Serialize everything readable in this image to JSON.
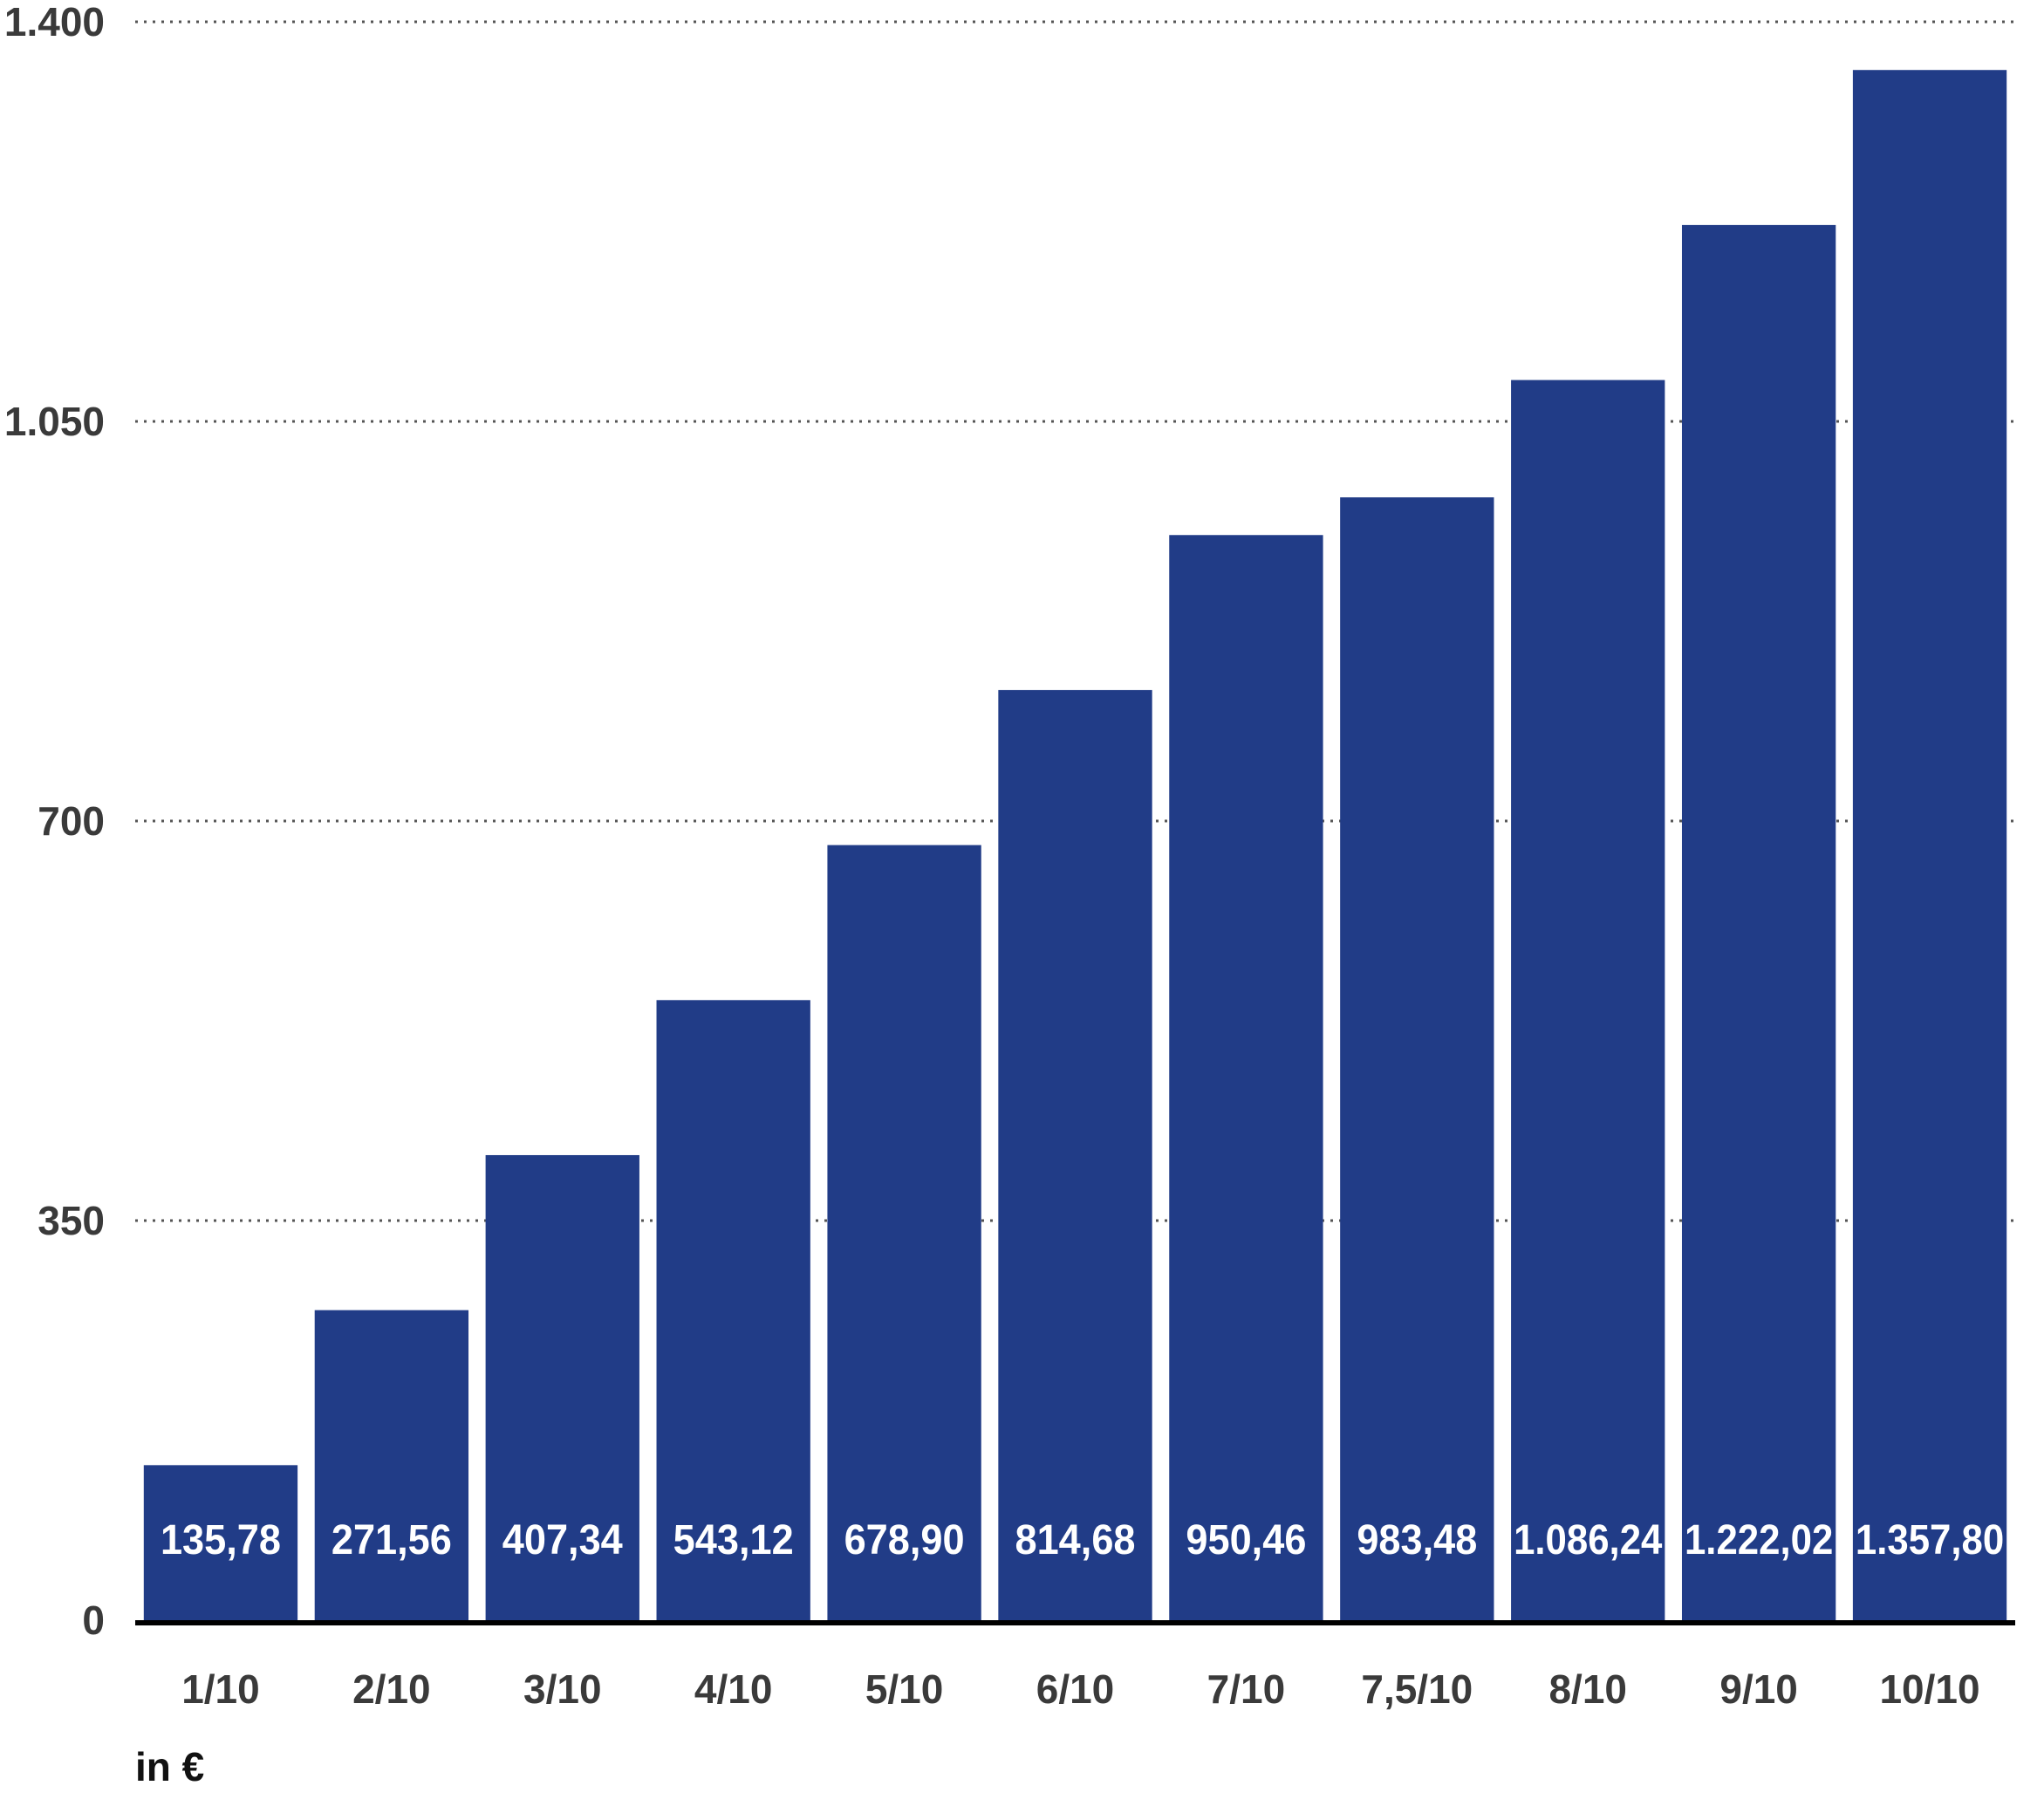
{
  "chart_data": {
    "type": "bar",
    "categories": [
      "1/10",
      "2/10",
      "3/10",
      "4/10",
      "5/10",
      "6/10",
      "7/10",
      "7,5/10",
      "8/10",
      "9/10",
      "10/10"
    ],
    "values": [
      135.78,
      271.56,
      407.34,
      543.12,
      678.9,
      814.68,
      950.46,
      983.48,
      1086.24,
      1222.02,
      1357.8
    ],
    "value_labels": [
      "135,78",
      "271,56",
      "407,34",
      "543,12",
      "678,90",
      "814,68",
      "950,46",
      "983,48",
      "1.086,24",
      "1.222,02",
      "1.357,80"
    ],
    "y_ticks": [
      0,
      350,
      700,
      1050,
      1400
    ],
    "y_tick_labels": [
      "0",
      "350",
      "700",
      "1.050",
      "1.400"
    ],
    "ylim": [
      0,
      1400
    ],
    "grid": true,
    "unit_label": "in €",
    "colors": {
      "bar": "#213c87",
      "bar_label": "#ffffff",
      "axis_text": "#3a3a3a"
    }
  }
}
